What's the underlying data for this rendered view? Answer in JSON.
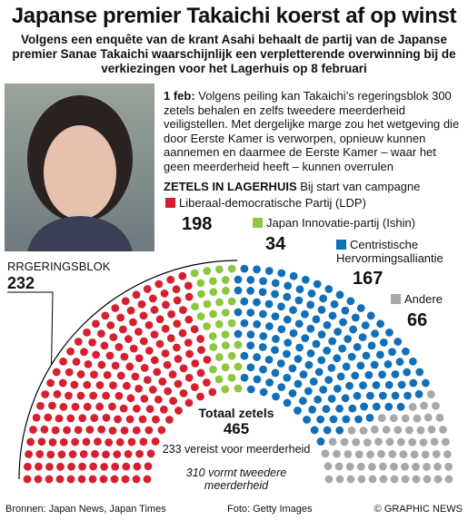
{
  "chart_data": {
    "type": "parliament",
    "title": "Japanse premier Takaichi koerst af op winst",
    "subtitle": "Volgens een enquête van de krant Asahi behaalt de partij van de Japanse premier Sanae Takaichi waarschijnlijk een verpletterende overwinning bij de verkiezingen voor het Lagerhuis op 8 februari",
    "note_date": "1 feb:",
    "note_text": "Volgens peiling kan Takaichi’s regeringsblok 300 zetels behalen en zelfs tweedere meerderheid veiligstellen. Met dergelijke marge zou het wetgeving die door Eerste Kamer is verworpen, opnieuw kunnen aannemen en daarmee de Eerste Kamer – waar het geen meerderheid heeft – kunnen overrulen",
    "chart_title": "ZETELS IN LAGERHUIS",
    "chart_subtitle": "Bij start van campagne",
    "series": [
      {
        "name": "Liberaal-democratische Partij (LDP)",
        "color": "#d4202f",
        "values": [
          198
        ]
      },
      {
        "name": "Japan Innovatie-partij (Ishin)",
        "color": "#8dc63f",
        "values": [
          34
        ]
      },
      {
        "name": "Centristische Hervormingsalliantie",
        "color": "#116fb8",
        "values": [
          167
        ]
      },
      {
        "name": "Andere",
        "color": "#a8a8a8",
        "values": [
          66
        ]
      }
    ],
    "bloc_label": "RRGERINGSBLOK",
    "bloc_value": 232,
    "total_label": "Totaal zetels",
    "total": 465,
    "majority_note": "233 vereist voor meerderheid",
    "supermajority_note": "310 vormt tweedere meerderheid",
    "sources": "Bronnen: Japan News, Japan Times",
    "photo_credit": "Foto: Getty Images",
    "copyright": "© GRAPHIC NEWS"
  }
}
